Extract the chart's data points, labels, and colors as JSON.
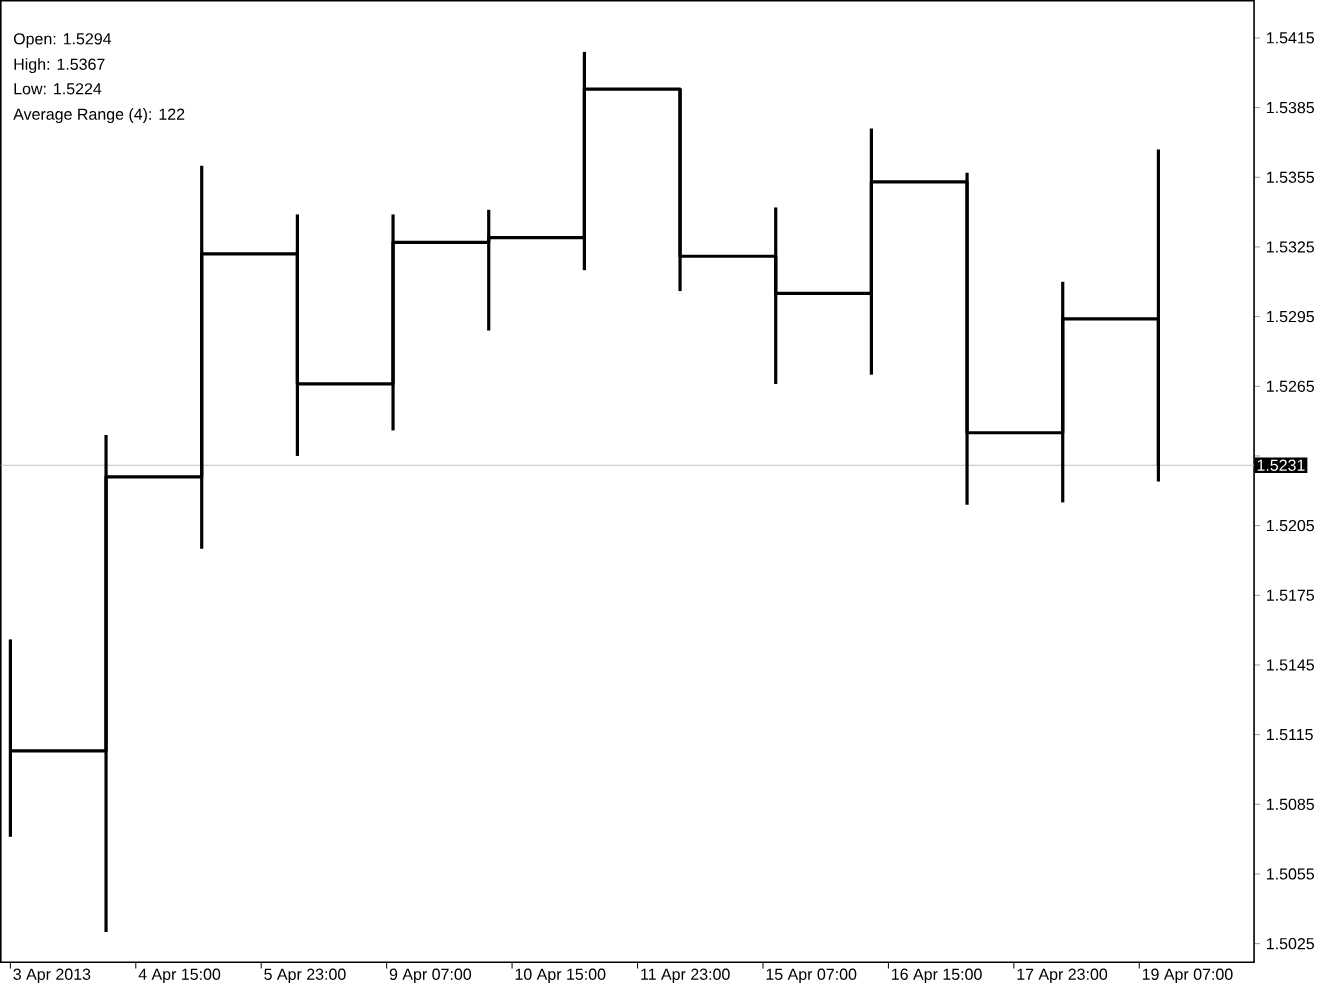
{
  "chart_data": {
    "type": "step",
    "categories": [
      null,
      null,
      null,
      null,
      null,
      null,
      null,
      null,
      null,
      null,
      null,
      null,
      null
    ],
    "values": [
      1.5108,
      1.5226,
      1.5322,
      1.5266,
      1.5327,
      1.5329,
      1.5393,
      1.5321,
      1.5305,
      1.5353,
      1.5245,
      1.5294,
      1.5231
    ],
    "errors": [
      [
        1.5071,
        1.5156
      ],
      [
        1.503,
        1.5244
      ],
      [
        1.5195,
        1.536
      ],
      [
        1.5235,
        1.5339
      ],
      [
        1.5246,
        1.5339
      ],
      [
        1.5289,
        1.5341
      ],
      [
        1.5315,
        1.5409
      ],
      [
        1.5306,
        1.5393
      ],
      [
        1.5266,
        1.5342
      ],
      [
        1.527,
        1.5376
      ],
      [
        1.5214,
        1.5357
      ],
      [
        1.5215,
        1.531
      ],
      [
        1.5224,
        1.5367
      ]
    ],
    "color": "#000000",
    "ylim": [
      1.5017,
      1.5431
    ],
    "yticks": [
      1.5025,
      1.5055,
      1.5085,
      1.5115,
      1.5145,
      1.5175,
      1.5205,
      {
        "value": 1.5235,
        "label": null
      },
      1.5265,
      1.5295,
      1.5325,
      1.5355,
      1.5385,
      1.5415
    ],
    "ref_lines": [
      {
        "axis": "y",
        "value": 1.5231,
        "label": "1.5231",
        "color": "#c0c0c0"
      }
    ],
    "annotations": [
      "Open: 1.5294",
      "High: 1.5367",
      "Low: 1.5224",
      "Average Range (4): 122",
      "3 Apr 2013",
      "4 Apr 15:00",
      "5 Apr 23:00",
      "9 Apr 07:00",
      "10 Apr 15:00",
      "11 Apr 23:00",
      "15 Apr 07:00",
      "16 Apr 15:00",
      "17 Apr 23:00",
      "19 Apr 07:00"
    ]
  }
}
